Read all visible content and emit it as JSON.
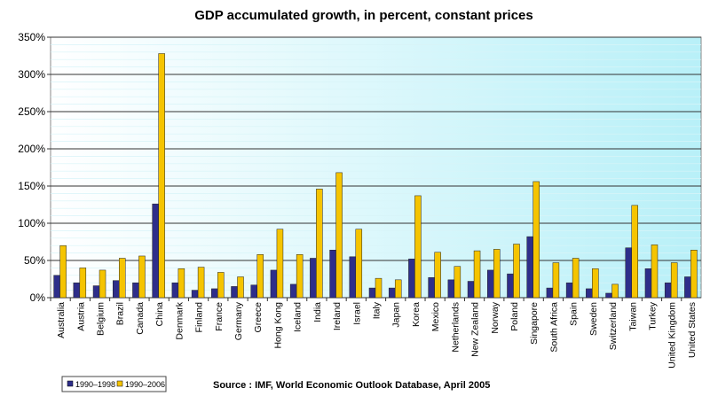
{
  "chart_data": {
    "type": "bar",
    "title": "GDP accumulated growth, in percent, constant prices",
    "xlabel": "",
    "ylabel": "",
    "ylim": [
      0,
      350
    ],
    "yticks": [
      "0%",
      "50%",
      "100%",
      "150%",
      "200%",
      "250%",
      "300%",
      "350%"
    ],
    "grid": true,
    "legend": "bottom-left",
    "categories": [
      "Australia",
      "Austria",
      "Belgium",
      "Brazil",
      "Canada",
      "China",
      "Denmark",
      "Finland",
      "France",
      "Germany",
      "Greece",
      "Hong Kong",
      "Iceland",
      "India",
      "Ireland",
      "Israel",
      "Italy",
      "Japan",
      "Korea",
      "Mexico",
      "Netherlands",
      "New Zealand",
      "Norway",
      "Poland",
      "Singapore",
      "South Africa",
      "Spain",
      "Sweden",
      "Switzerland",
      "Taiwan",
      "Turkey",
      "United Kingdom",
      "United States"
    ],
    "series": [
      {
        "name": "1990–1998",
        "color": "#2e2e8a",
        "values": [
          30,
          20,
          16,
          23,
          20,
          126,
          20,
          10,
          12,
          15,
          17,
          37,
          18,
          53,
          64,
          55,
          13,
          13,
          52,
          27,
          24,
          22,
          37,
          32,
          82,
          13,
          20,
          12,
          6,
          67,
          39,
          20,
          28
        ]
      },
      {
        "name": "1990–2006",
        "color": "#f5c400",
        "values": [
          70,
          40,
          37,
          53,
          56,
          328,
          39,
          41,
          34,
          28,
          58,
          92,
          58,
          146,
          168,
          92,
          26,
          24,
          137,
          61,
          42,
          63,
          65,
          72,
          156,
          47,
          53,
          39,
          18,
          124,
          71,
          47,
          64
        ]
      }
    ],
    "source": "Source : IMF, World Economic Outlook Database, April 2005"
  }
}
